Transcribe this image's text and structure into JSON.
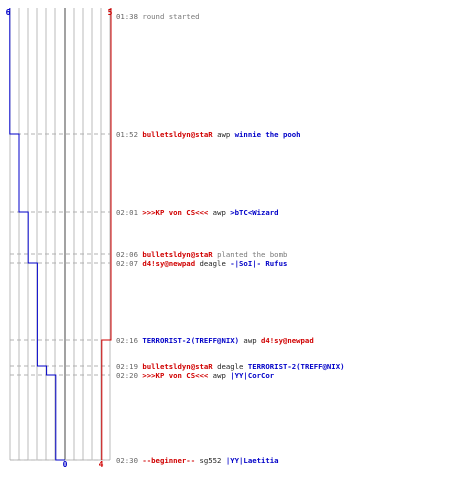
{
  "colors": {
    "ct": "#0000c8",
    "t": "#d00000",
    "grid": "#bbbbbb",
    "dash": "#b0b0b0",
    "center": "#444444",
    "time": "#666666",
    "plain": "#777777"
  },
  "scores": {
    "ct_start": "6",
    "t_start": "5",
    "ct_end": "0",
    "t_end": "4"
  },
  "events": [
    {
      "time": "01:38",
      "type": "note",
      "text": "round started",
      "ct_alive": 6,
      "t_alive": 5
    },
    {
      "time": "01:52",
      "type": "kill",
      "killer": "bulletsldyn@staR",
      "killer_team": "t",
      "weapon": "awp",
      "victim": "winnie the pooh",
      "victim_team": "ct",
      "ct_alive": 5,
      "t_alive": 5
    },
    {
      "time": "02:01",
      "type": "kill",
      "killer": ">>>KP von CS<<<",
      "killer_team": "t",
      "weapon": "awp",
      "victim": ">bTC<Wizard",
      "victim_team": "ct",
      "ct_alive": 4,
      "t_alive": 5
    },
    {
      "time": "02:06",
      "type": "action",
      "actor": "bulletsldyn@staR",
      "actor_team": "t",
      "text": "planted the bomb",
      "ct_alive": 4,
      "t_alive": 5
    },
    {
      "time": "02:07",
      "type": "kill",
      "killer": "d4!sy@newpad",
      "killer_team": "t",
      "weapon": "deagle",
      "victim": "-|SoI|- Rufus",
      "victim_team": "ct",
      "ct_alive": 3,
      "t_alive": 5
    },
    {
      "time": "02:16",
      "type": "kill",
      "killer": "TERRORIST-2(TREFF@NIX)",
      "killer_team": "ct",
      "weapon": "awp",
      "victim": "d4!sy@newpad",
      "victim_team": "t",
      "ct_alive": 3,
      "t_alive": 4
    },
    {
      "time": "02:19",
      "type": "kill",
      "killer": "bulletsldyn@staR",
      "killer_team": "t",
      "weapon": "deagle",
      "victim": "TERRORIST-2(TREFF@NIX)",
      "victim_team": "ct",
      "ct_alive": 2,
      "t_alive": 4
    },
    {
      "time": "02:20",
      "type": "kill",
      "killer": ">>>KP von CS<<<",
      "killer_team": "t",
      "weapon": "awp",
      "victim": "|YY|CorCor",
      "victim_team": "ct",
      "ct_alive": 1,
      "t_alive": 4
    },
    {
      "time": "02:30",
      "type": "kill",
      "killer": "--beginner--",
      "killer_team": "t",
      "weapon": "sg552",
      "victim": "|YY|Laetitia",
      "victim_team": "ct",
      "ct_alive": 0,
      "t_alive": 4
    }
  ]
}
